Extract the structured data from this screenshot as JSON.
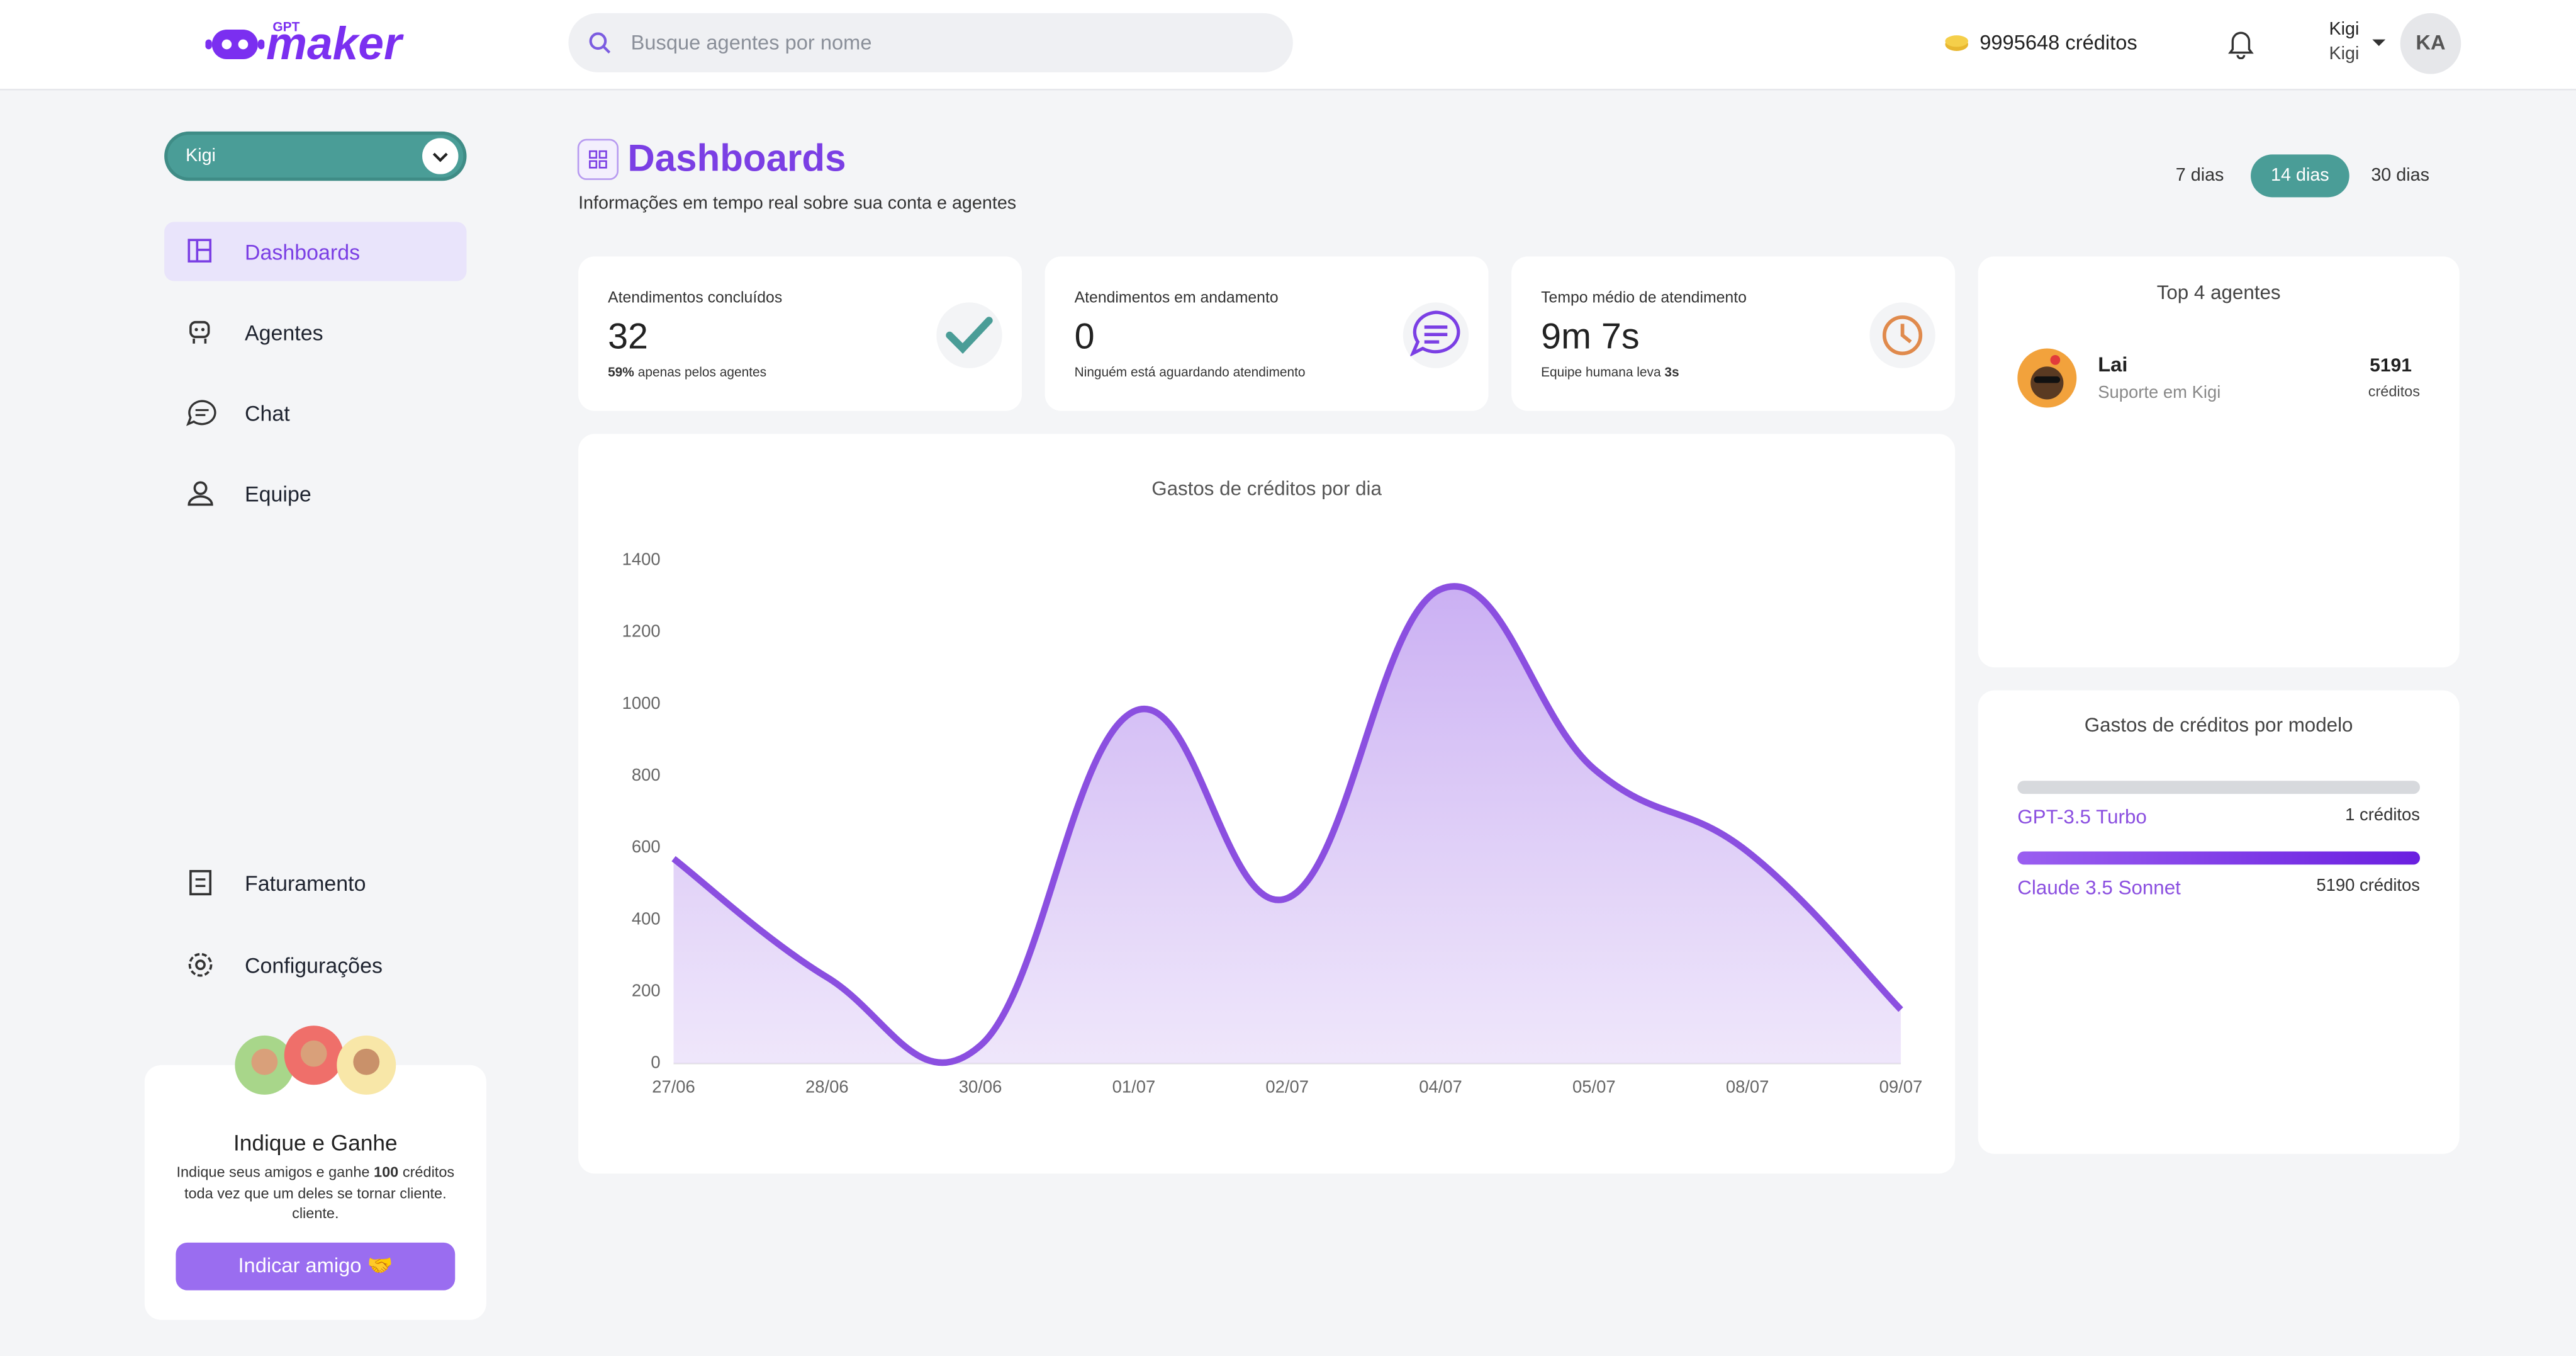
{
  "header": {
    "logo_small": "GPT",
    "logo": "maker",
    "search_placeholder": "Busque agentes por nome",
    "credits": "9995648 créditos",
    "user_name": "Kigi",
    "user_team": "Kigi",
    "avatar": "KA"
  },
  "sidebar": {
    "workspace": "Kigi",
    "menu": [
      "Dashboards",
      "Agentes",
      "Chat",
      "Equipe"
    ],
    "bottom_menu": [
      "Faturamento",
      "Configurações"
    ],
    "referral": {
      "title": "Indique e Ganhe",
      "text_1": "Indique seus amigos e ganhe",
      "text_bold": "100",
      "text_2": "créditos toda vez que um deles se tornar cliente. cliente.",
      "button": "Indicar amigo 🤝"
    }
  },
  "page": {
    "title": "Dashboards",
    "subtitle": "Informações em tempo real sobre sua conta e agentes",
    "periods": [
      "7 dias",
      "14 dias",
      "30 dias"
    ]
  },
  "stats": [
    {
      "label": "Atendimentos concluídos",
      "value": "32",
      "sub_bold": "59%",
      "sub": "apenas pelos agentes"
    },
    {
      "label": "Atendimentos em andamento",
      "value": "0",
      "sub": "Ninguém está aguardando atendimento"
    },
    {
      "label": "Tempo médio de atendimento",
      "value": "9m 7s",
      "sub": "Equipe humana leva",
      "sub_bold": "3s"
    }
  ],
  "top_agents": {
    "title": "Top 4 agentes",
    "agents": [
      {
        "name": "Lai",
        "desc": "Suporte em Kigi",
        "credits": "5191",
        "unit": "créditos"
      }
    ]
  },
  "model_costs": {
    "title": "Gastos de créditos por modelo",
    "models": [
      {
        "name": "GPT-3.5 Turbo",
        "value": 1,
        "label": "1 créditos"
      },
      {
        "name": "Claude 3.5 Sonnet",
        "value": 5190,
        "label": "5190 créditos"
      }
    ]
  },
  "chart_data": {
    "type": "area",
    "title": "Gastos de créditos por dia",
    "categories": [
      "27/06",
      "28/06",
      "30/06",
      "01/07",
      "02/07",
      "04/07",
      "05/07",
      "08/07",
      "09/07"
    ],
    "values": [
      570,
      240,
      50,
      980,
      460,
      1320,
      820,
      590,
      150
    ],
    "color": "#8b4fe0",
    "ylim": [
      0,
      1400
    ],
    "yticks": [
      0,
      200,
      400,
      600,
      800,
      1000,
      1200,
      1400
    ],
    "grid": false
  }
}
